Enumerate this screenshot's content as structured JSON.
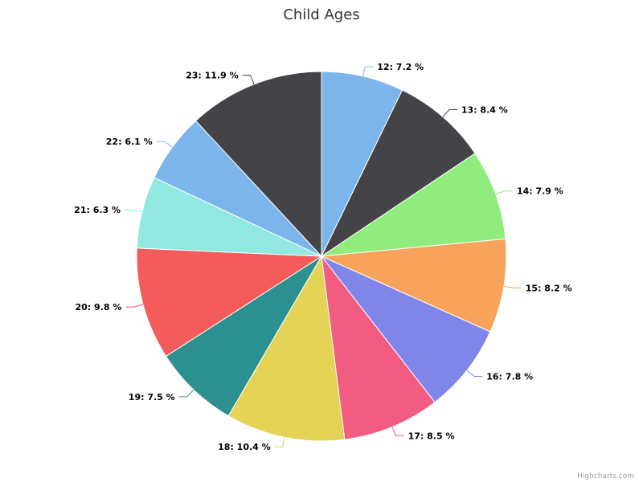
{
  "chart_data": {
    "type": "pie",
    "title": "Child Ages",
    "categories": [
      "12",
      "13",
      "14",
      "15",
      "16",
      "17",
      "18",
      "19",
      "20",
      "21",
      "22",
      "23"
    ],
    "values": [
      7.2,
      8.4,
      7.9,
      8.2,
      7.8,
      8.5,
      10.4,
      7.5,
      9.8,
      6.3,
      6.1,
      11.9
    ],
    "labels": [
      "12: 7.2 %",
      "13: 8.4 %",
      "14: 7.9 %",
      "15: 8.2 %",
      "16: 7.8 %",
      "17: 8.5 %",
      "18: 10.4 %",
      "19: 7.5 %",
      "20: 9.8 %",
      "21: 6.3 %",
      "22: 6.1 %",
      "23: 11.9 %"
    ],
    "colors": [
      "#7cb5ec",
      "#434348",
      "#90ed7d",
      "#f7a35c",
      "#8085e9",
      "#f15c80",
      "#e4d354",
      "#2b908f",
      "#f45b5b",
      "#91e8e1",
      "#7cb5ec",
      "#434348"
    ],
    "unit": "%"
  },
  "credits": "Highcharts.com"
}
